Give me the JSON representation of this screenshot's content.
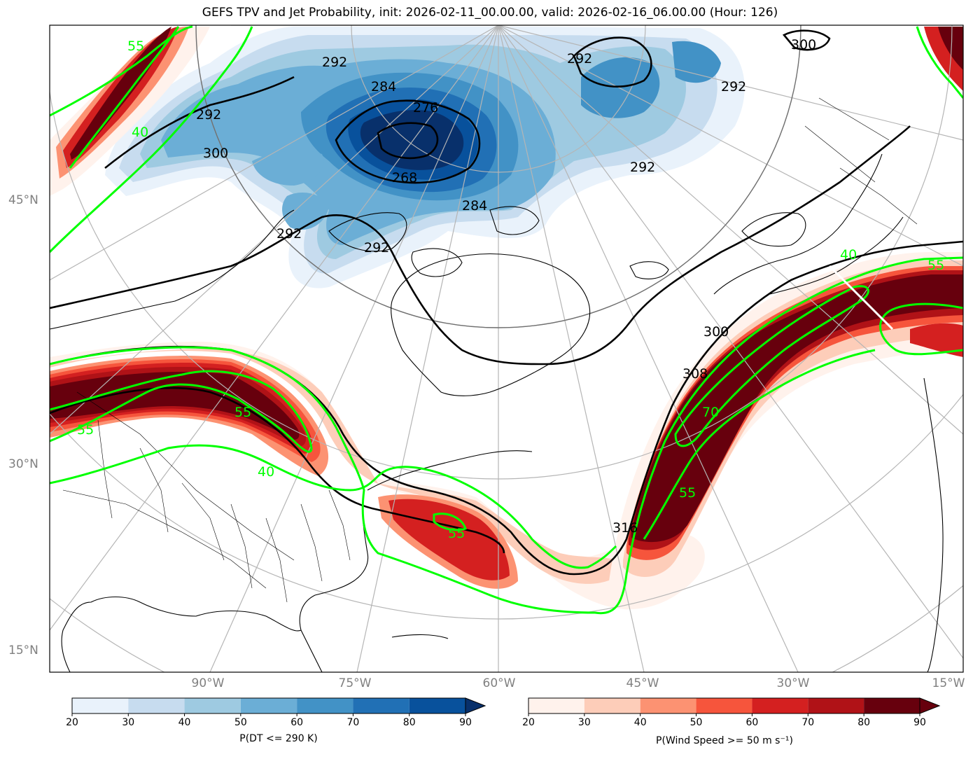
{
  "title": "GEFS TPV and Jet Probability, init: 2026-02-11_00.00.00, valid: 2026-02-16_06.00.00 (Hour: 126)",
  "lat_labels": [
    "45°N",
    "30°N",
    "15°N"
  ],
  "lon_labels": [
    "90°W",
    "75°W",
    "60°W",
    "45°W",
    "30°W",
    "15°W"
  ],
  "contour_labels": {
    "theta": [
      "292",
      "284",
      "276",
      "268",
      "300",
      "292",
      "292",
      "292",
      "300",
      "284",
      "292",
      "292",
      "300",
      "308",
      "316",
      "292"
    ],
    "wind": [
      "55",
      "40",
      "55",
      "55",
      "40",
      "55",
      "40",
      "55",
      "70",
      "55"
    ]
  },
  "colorbar_blue": {
    "ticks": [
      "20",
      "30",
      "40",
      "50",
      "60",
      "70",
      "80",
      "90"
    ],
    "label": "P(DT <= 290 K)",
    "colors": [
      "#e9f2fb",
      "#c7dcef",
      "#9ecae1",
      "#6baed6",
      "#4292c6",
      "#2170b5",
      "#08519c",
      "#08306b"
    ]
  },
  "colorbar_red": {
    "ticks": [
      "20",
      "30",
      "40",
      "50",
      "60",
      "70",
      "80",
      "90"
    ],
    "label": "P(Wind Speed >= 50 m s⁻¹)",
    "colors": [
      "#fff2ec",
      "#fdcdb9",
      "#fc9272",
      "#f6553c",
      "#d42020",
      "#b01217",
      "#67000d"
    ]
  }
}
